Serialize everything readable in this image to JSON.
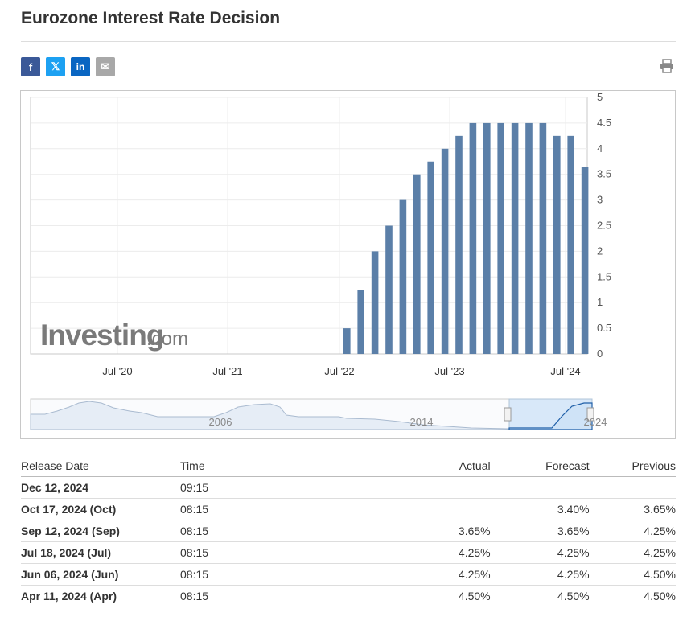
{
  "page": {
    "title": "Eurozone Interest Rate Decision",
    "share": {
      "facebook_icon": "f",
      "twitter_icon": "𝕏",
      "linkedin_icon": "in",
      "email_icon": "✉"
    },
    "watermark": {
      "brand": "Investing",
      "suffix": ".com"
    }
  },
  "chart_data": {
    "type": "bar",
    "title": "",
    "xlabel": "",
    "ylabel": "",
    "ylim": [
      0,
      5
    ],
    "yticks": [
      "0",
      "0.5",
      "1",
      "1.5",
      "2",
      "2.5",
      "3",
      "3.5",
      "4",
      "4.5",
      "5"
    ],
    "xticks": [
      "Jul '20",
      "Jul '21",
      "Jul '22",
      "Jul '23",
      "Jul '24"
    ],
    "grid": true,
    "bar_color": "#5b7fa8",
    "categories": [
      "Jul '22",
      "Sep '22",
      "Oct '22",
      "Dec '22",
      "Feb '23",
      "Mar '23",
      "May '23",
      "Jun '23",
      "Jul '23",
      "Sep '23",
      "Oct '23",
      "Dec '23",
      "Jan '24",
      "Mar '24",
      "Apr '24",
      "Jun '24",
      "Jul '24",
      "Sep '24"
    ],
    "values": [
      0.5,
      1.25,
      2.0,
      2.5,
      3.0,
      3.5,
      3.75,
      4.0,
      4.25,
      4.5,
      4.5,
      4.5,
      4.5,
      4.5,
      4.5,
      4.25,
      4.25,
      3.65
    ],
    "navigator": {
      "labels": [
        "2006",
        "2014",
        "2024"
      ]
    }
  },
  "table": {
    "headers": {
      "date": "Release Date",
      "time": "Time",
      "actual": "Actual",
      "forecast": "Forecast",
      "previous": "Previous"
    },
    "rows": [
      {
        "date": "Dec 12, 2024",
        "time": "09:15",
        "actual": "",
        "forecast": "",
        "previous": ""
      },
      {
        "date": "Oct 17, 2024 (Oct)",
        "time": "08:15",
        "actual": "",
        "forecast": "3.40%",
        "previous": "3.65%"
      },
      {
        "date": "Sep 12, 2024 (Sep)",
        "time": "08:15",
        "actual": "3.65%",
        "forecast": "3.65%",
        "previous": "4.25%"
      },
      {
        "date": "Jul 18, 2024 (Jul)",
        "time": "08:15",
        "actual": "4.25%",
        "forecast": "4.25%",
        "previous": "4.25%"
      },
      {
        "date": "Jun 06, 2024 (Jun)",
        "time": "08:15",
        "actual": "4.25%",
        "forecast": "4.25%",
        "previous": "4.50%"
      },
      {
        "date": "Apr 11, 2024 (Apr)",
        "time": "08:15",
        "actual": "4.50%",
        "forecast": "4.50%",
        "previous": "4.50%"
      }
    ]
  }
}
